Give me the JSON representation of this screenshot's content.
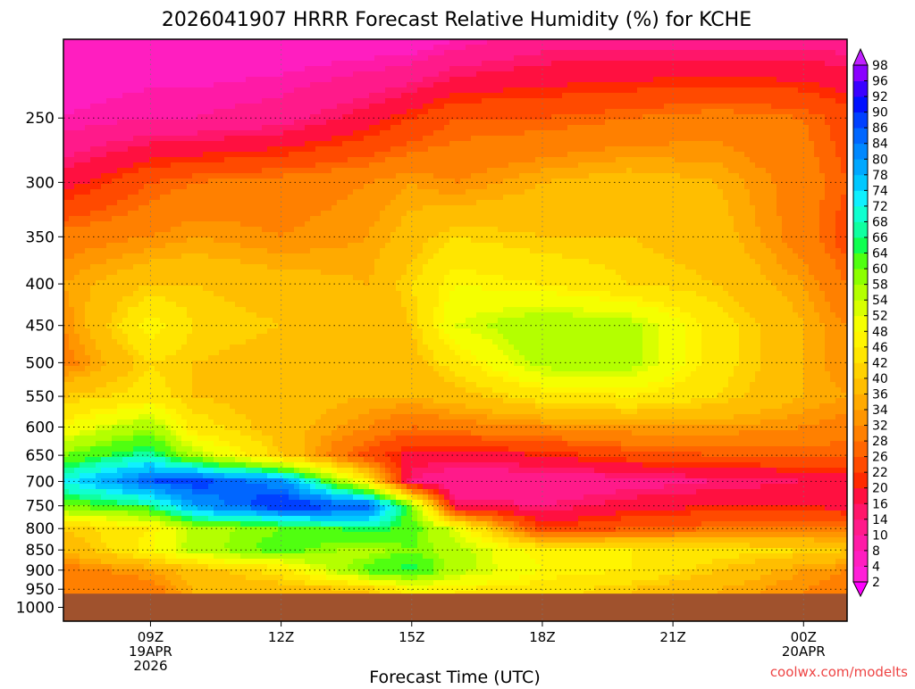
{
  "chart_data": {
    "type": "heatmap",
    "title": "2026041907 HRRR Forecast Relative Humidity (%) for KCHE",
    "xlabel": "Forecast Time (UTC)",
    "ylabel": "",
    "watermark": "coolwx.com/modelts",
    "x_ticks": [
      {
        "hour": 9,
        "lines": [
          "09Z",
          "19APR",
          "2026"
        ]
      },
      {
        "hour": 12,
        "lines": [
          "12Z"
        ]
      },
      {
        "hour": 15,
        "lines": [
          "15Z"
        ]
      },
      {
        "hour": 18,
        "lines": [
          "18Z"
        ]
      },
      {
        "hour": 21,
        "lines": [
          "21Z"
        ]
      },
      {
        "hour": 24,
        "lines": [
          "00Z",
          "20APR"
        ]
      }
    ],
    "xlim": [
      7.0,
      25.0
    ],
    "y_ticks": [
      250,
      300,
      350,
      400,
      450,
      500,
      550,
      600,
      650,
      700,
      750,
      800,
      850,
      900,
      950,
      1000
    ],
    "ylim": [
      200,
      1040
    ],
    "y_scale": "log",
    "grid": true,
    "surface_pressure": 962,
    "surface_color": "#a0522d",
    "colorbar": {
      "levels": [
        2,
        4,
        8,
        10,
        14,
        16,
        20,
        22,
        26,
        28,
        32,
        34,
        36,
        40,
        42,
        46,
        48,
        52,
        54,
        58,
        60,
        64,
        66,
        68,
        72,
        74,
        78,
        80,
        84,
        86,
        90,
        92,
        96,
        98
      ],
      "colors": [
        "#ff00ff",
        "#ff1fd8",
        "#ff1ec0",
        "#ff1aa6",
        "#ff1a8a",
        "#ff166a",
        "#ff1040",
        "#ff2a00",
        "#ff4a00",
        "#ff6600",
        "#ff8000",
        "#ff9600",
        "#ffaa00",
        "#ffbe00",
        "#ffd200",
        "#ffe600",
        "#fff500",
        "#f5ff00",
        "#d8ff00",
        "#b4ff00",
        "#8cff00",
        "#50ff10",
        "#10ff50",
        "#10ffa0",
        "#10ffd0",
        "#10f0ff",
        "#00c8ff",
        "#00a8ff",
        "#0088ff",
        "#0066ff",
        "#0040ff",
        "#0010ff",
        "#3a00ff",
        "#8a00ff",
        "#c020ff"
      ]
    },
    "rh_field": {
      "hours": [
        7.0,
        9.0,
        10.0,
        12.0,
        14.0,
        15.0,
        16.0,
        18.0,
        20.0,
        22.0,
        24.0,
        25.0
      ],
      "pressures": [
        200,
        250,
        300,
        350,
        400,
        450,
        500,
        550,
        600,
        650,
        700,
        750,
        800,
        850,
        900,
        950
      ],
      "values": [
        [
          5,
          5,
          5,
          5,
          5,
          5,
          8,
          12,
          12,
          12,
          12,
          12
        ],
        [
          8,
          10,
          10,
          12,
          18,
          22,
          26,
          26,
          28,
          30,
          28,
          24
        ],
        [
          18,
          26,
          28,
          30,
          32,
          34,
          32,
          36,
          38,
          36,
          30,
          26
        ],
        [
          30,
          32,
          34,
          32,
          34,
          38,
          42,
          40,
          40,
          38,
          30,
          24
        ],
        [
          34,
          40,
          40,
          38,
          36,
          42,
          48,
          46,
          42,
          40,
          34,
          28
        ],
        [
          32,
          48,
          42,
          40,
          36,
          40,
          52,
          58,
          56,
          44,
          36,
          32
        ],
        [
          30,
          42,
          40,
          38,
          36,
          38,
          44,
          56,
          56,
          44,
          36,
          32
        ],
        [
          40,
          44,
          40,
          38,
          36,
          36,
          38,
          44,
          46,
          42,
          36,
          34
        ],
        [
          48,
          58,
          44,
          38,
          32,
          28,
          30,
          32,
          34,
          34,
          32,
          30
        ],
        [
          60,
          68,
          56,
          40,
          24,
          18,
          18,
          20,
          24,
          26,
          26,
          26
        ],
        [
          72,
          86,
          88,
          82,
          46,
          14,
          10,
          10,
          12,
          14,
          16,
          16
        ],
        [
          60,
          66,
          80,
          90,
          86,
          60,
          16,
          14,
          18,
          20,
          20,
          18
        ],
        [
          40,
          46,
          56,
          60,
          66,
          62,
          52,
          22,
          26,
          28,
          30,
          30
        ],
        [
          36,
          48,
          56,
          62,
          56,
          60,
          56,
          46,
          46,
          44,
          42,
          40
        ],
        [
          30,
          34,
          38,
          44,
          62,
          66,
          56,
          48,
          46,
          40,
          34,
          32
        ],
        [
          28,
          30,
          36,
          38,
          40,
          48,
          46,
          44,
          40,
          36,
          32,
          30
        ]
      ]
    }
  }
}
